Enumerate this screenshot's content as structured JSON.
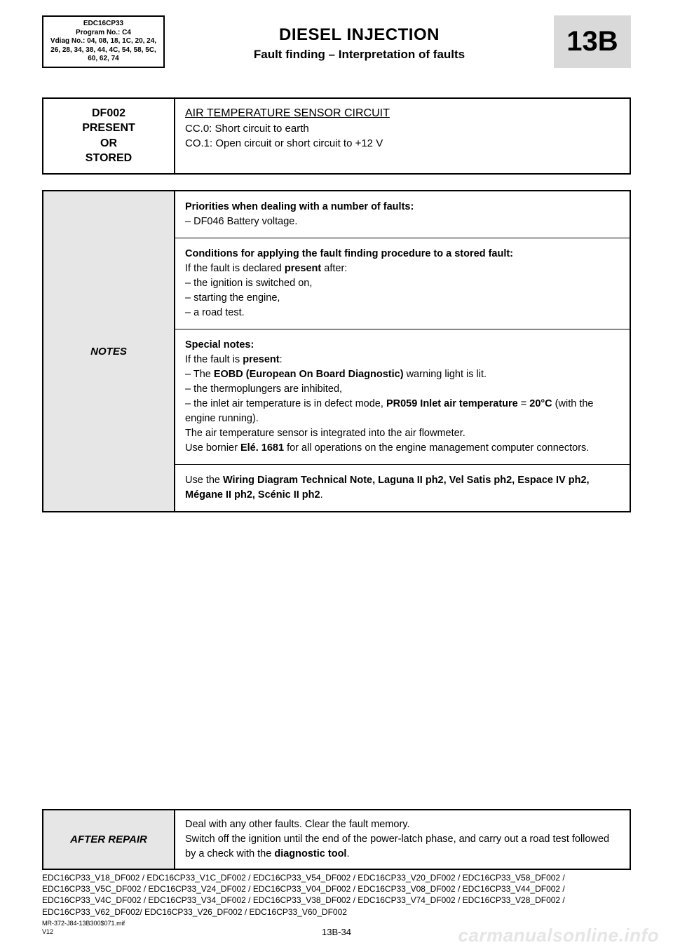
{
  "header": {
    "infobox": {
      "line1": "EDC16CP33",
      "line2": "Program No.: C4",
      "line3": "Vdiag No.: 04, 08, 18, 1C, 20, 24, 26, 28, 34, 38, 44, 4C, 54, 58, 5C, 60, 62, 74"
    },
    "title": "DIESEL INJECTION",
    "subtitle": "Fault finding – Interpretation of faults",
    "code": "13B"
  },
  "fault": {
    "code": "DF002",
    "status1": "PRESENT",
    "status2": "OR",
    "status3": "STORED",
    "title": "AIR TEMPERATURE SENSOR CIRCUIT",
    "line1": "CC.0: Short circuit to earth",
    "line2": "CO.1: Open circuit or short circuit to +12 V"
  },
  "notes": {
    "label": "NOTES",
    "cell1": {
      "heading": "Priorities when dealing with a number of faults:",
      "bullet1": "–  DF046 Battery voltage."
    },
    "cell2": {
      "heading": "Conditions for applying the fault finding procedure to a stored fault:",
      "intro_a": "If the fault is declared ",
      "intro_b": "present",
      "intro_c": " after:",
      "b1": "–  the ignition is switched on,",
      "b2": "–  starting the engine,",
      "b3": "–  a road test."
    },
    "cell3": {
      "heading": "Special notes:",
      "intro_a": "If the fault is ",
      "intro_b": "present",
      "intro_c": ":",
      "b1a": "–  The ",
      "b1b": "EOBD (European On Board Diagnostic)",
      "b1c": " warning light is lit.",
      "b2": "–  the thermoplungers are inhibited,",
      "b3a": "–  the inlet air temperature is in defect mode, ",
      "b3b": "PR059 Inlet air temperature",
      "b3c": " = ",
      "b3d": "20°C",
      "b3e": " (with the engine running).",
      "line4": "The air temperature sensor is integrated into the air flowmeter.",
      "line5a": "Use bornier ",
      "line5b": "Elé. 1681",
      "line5c": " for all operations on the engine management computer connectors."
    },
    "cell4": {
      "a": "Use the ",
      "b": "Wiring Diagram Technical Note, Laguna II ph2, Vel Satis ph2, Espace IV ph2, Mégane II ph2, Scénic II ph2",
      "c": "."
    }
  },
  "after": {
    "label": "AFTER REPAIR",
    "line1": "Deal with any other faults. Clear the fault memory.",
    "line2a": "Switch off the ignition until the end of the power-latch phase, and carry out a road test followed by a check with the ",
    "line2b": "diagnostic tool",
    "line2c": "."
  },
  "codes": "EDC16CP33_V18_DF002 / EDC16CP33_V1C_DF002 / EDC16CP33_V54_DF002 / EDC16CP33_V20_DF002 / EDC16CP33_V58_DF002 / EDC16CP33_V5C_DF002 / EDC16CP33_V24_DF002 / EDC16CP33_V04_DF002 / EDC16CP33_V08_DF002 / EDC16CP33_V44_DF002 / EDC16CP33_V4C_DF002 / EDC16CP33_V34_DF002 / EDC16CP33_V38_DF002 / EDC16CP33_V74_DF002 / EDC16CP33_V28_DF002 / EDC16CP33_V62_DF002/ EDC16CP33_V26_DF002 / EDC16CP33_V60_DF002",
  "footer": {
    "ref1": "MR-372-J84-13B300$071.mif",
    "ref2": "V12",
    "pagenum": "13B-34"
  },
  "watermark": "carmanualsonline.info"
}
